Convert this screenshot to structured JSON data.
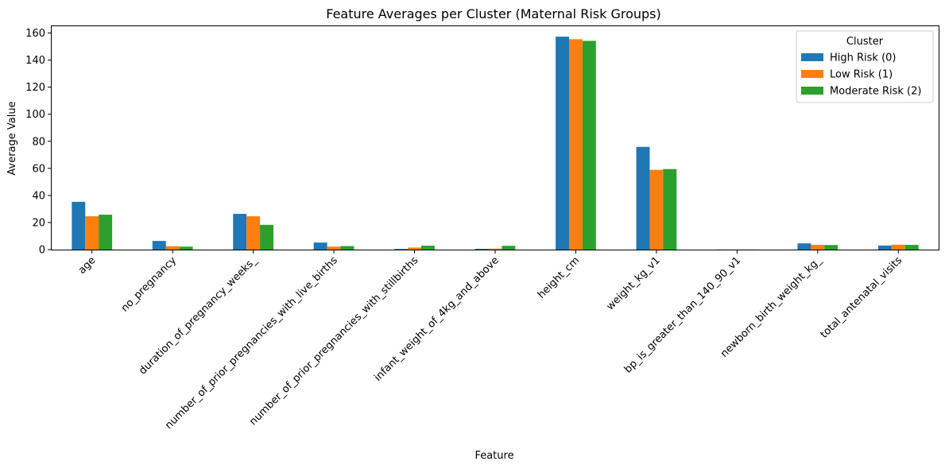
{
  "chart_data": {
    "type": "bar",
    "title": "Feature Averages per Cluster (Maternal Risk Groups)",
    "xlabel": "Feature",
    "ylabel": "Average Value",
    "ylim": [
      0,
      165
    ],
    "yticks": [
      0,
      20,
      40,
      60,
      80,
      100,
      120,
      140,
      160
    ],
    "grid": false,
    "legend": {
      "title": "Cluster",
      "placement": "top-right"
    },
    "categories": [
      "age",
      "no_pregnancy",
      "duration_of_pregnancy_weeks_",
      "number_of_prior_pregnancies_with_live_births",
      "number_of_prior_pregnancies_with_stillbirths",
      "infant_weight_of_4kg_and_above",
      "height_cm",
      "weight_kg_v1",
      "bp_is_greater_than_140_90_v1",
      "newborn_birth_weight_kg_",
      "total_antenatal_visits"
    ],
    "series": [
      {
        "name": "High Risk (0)",
        "color": "#1f77b4",
        "values": [
          35.3,
          6.4,
          26.4,
          5.2,
          0.5,
          0.6,
          157.3,
          75.9,
          0.1,
          4.6,
          3.0
        ]
      },
      {
        "name": "Low Risk (1)",
        "color": "#ff7f0e",
        "values": [
          24.6,
          2.5,
          24.6,
          2.2,
          1.5,
          0.7,
          155.4,
          58.9,
          0.1,
          3.5,
          3.6
        ]
      },
      {
        "name": "Moderate Risk (2)",
        "color": "#2ca02c",
        "values": [
          25.8,
          2.2,
          18.3,
          2.6,
          2.9,
          2.8,
          154.2,
          59.5,
          0.1,
          3.4,
          3.5
        ]
      }
    ]
  }
}
